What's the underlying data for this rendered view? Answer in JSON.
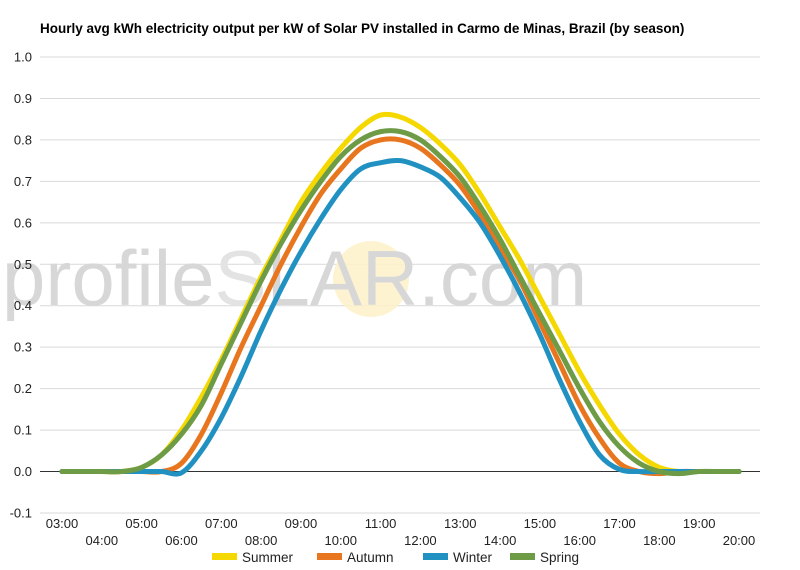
{
  "chart_data": {
    "type": "line",
    "title": "Hourly avg kWh electricity output per kW of Solar PV installed in Carmo de Minas, Brazil (by season)",
    "xlabel": "",
    "ylabel": "",
    "ylim": [
      -0.1,
      1.0
    ],
    "yticks": [
      "-0.1",
      "0.0",
      "0.1",
      "0.2",
      "0.3",
      "0.4",
      "0.5",
      "0.6",
      "0.7",
      "0.8",
      "0.9",
      "1.0"
    ],
    "x_labels_upper": [
      "03:00",
      "05:00",
      "07:00",
      "09:00",
      "11:00",
      "13:00",
      "15:00",
      "17:00",
      "19:00"
    ],
    "x_labels_lower": [
      "04:00",
      "06:00",
      "08:00",
      "10:00",
      "12:00",
      "14:00",
      "16:00",
      "18:00",
      "20:00"
    ],
    "x": [
      3,
      3.5,
      4,
      4.5,
      5,
      5.5,
      6,
      6.5,
      7,
      7.5,
      8,
      8.5,
      9,
      9.5,
      10,
      10.5,
      11,
      11.5,
      12,
      12.5,
      13,
      13.5,
      14,
      14.5,
      15,
      15.5,
      16,
      16.5,
      17,
      17.5,
      18,
      18.5,
      19,
      19.5,
      20
    ],
    "series": [
      {
        "name": "Summer",
        "color": "#f5d800",
        "values": [
          0,
          0,
          0,
          0,
          0.01,
          0.04,
          0.1,
          0.18,
          0.27,
          0.37,
          0.47,
          0.56,
          0.65,
          0.72,
          0.78,
          0.83,
          0.86,
          0.855,
          0.83,
          0.79,
          0.74,
          0.67,
          0.59,
          0.51,
          0.42,
          0.33,
          0.24,
          0.16,
          0.09,
          0.04,
          0.01,
          0,
          0,
          0,
          0
        ]
      },
      {
        "name": "Autumn",
        "color": "#e8761f",
        "values": [
          0,
          0,
          0,
          0,
          0,
          0,
          0.02,
          0.09,
          0.19,
          0.3,
          0.4,
          0.5,
          0.59,
          0.67,
          0.73,
          0.78,
          0.8,
          0.8,
          0.78,
          0.74,
          0.69,
          0.62,
          0.54,
          0.46,
          0.36,
          0.26,
          0.16,
          0.08,
          0.02,
          0,
          -0.005,
          0,
          0,
          0,
          0
        ]
      },
      {
        "name": "Winter",
        "color": "#2191c2",
        "values": [
          0,
          0,
          0,
          0,
          0,
          0,
          -0.003,
          0.05,
          0.13,
          0.23,
          0.34,
          0.44,
          0.53,
          0.61,
          0.68,
          0.73,
          0.745,
          0.75,
          0.735,
          0.71,
          0.66,
          0.6,
          0.52,
          0.43,
          0.33,
          0.22,
          0.12,
          0.04,
          0.005,
          0,
          0,
          0,
          0,
          0,
          0
        ]
      },
      {
        "name": "Spring",
        "color": "#6e9b45",
        "values": [
          0,
          0,
          0,
          0,
          0.01,
          0.04,
          0.09,
          0.16,
          0.26,
          0.36,
          0.46,
          0.55,
          0.63,
          0.7,
          0.76,
          0.8,
          0.82,
          0.82,
          0.8,
          0.76,
          0.71,
          0.64,
          0.56,
          0.47,
          0.38,
          0.29,
          0.2,
          0.12,
          0.06,
          0.02,
          0,
          -0.005,
          0,
          0,
          0
        ]
      }
    ],
    "grid": true,
    "legend_position": "bottom"
  },
  "watermark": {
    "left": "profile",
    "s": "S",
    "right": "LAR.com"
  }
}
